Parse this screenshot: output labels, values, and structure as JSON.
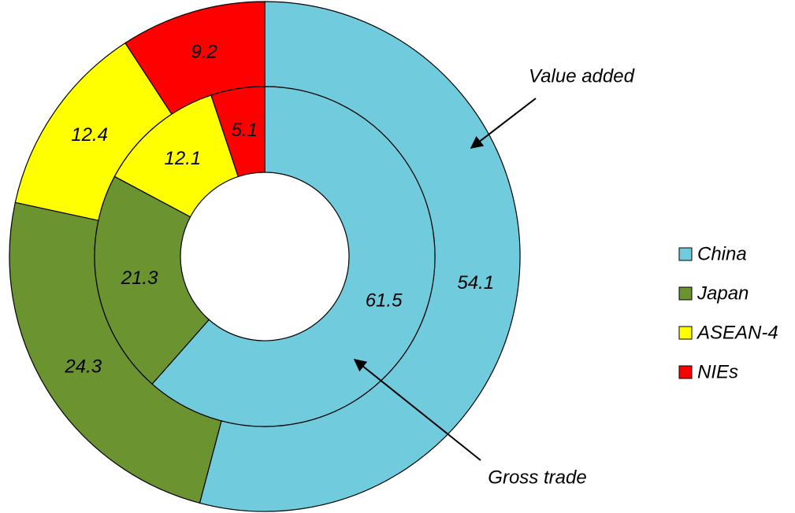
{
  "chart_data": {
    "type": "donut",
    "categories": [
      "China",
      "Japan",
      "ASEAN-4",
      "NIEs"
    ],
    "colors": [
      "#70cbdc",
      "#6b9430",
      "#ffff00",
      "#ff0000"
    ],
    "series": [
      {
        "name": "Value added",
        "values": [
          54.1,
          24.3,
          12.4,
          9.2
        ]
      },
      {
        "name": "Gross trade",
        "values": [
          61.5,
          21.3,
          12.1,
          5.1
        ]
      }
    ],
    "legend": "right"
  }
}
